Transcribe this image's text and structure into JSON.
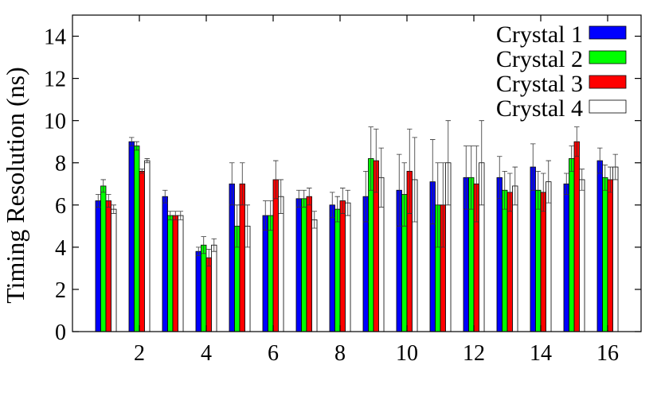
{
  "chart_data": {
    "type": "bar",
    "title": "",
    "xlabel": "",
    "ylabel": "Timing Resolution (ns)",
    "xlim": [
      0,
      17
    ],
    "ylim": [
      0,
      15
    ],
    "x_ticks": [
      2,
      4,
      6,
      8,
      10,
      12,
      14,
      16
    ],
    "y_ticks": [
      0,
      2,
      4,
      6,
      8,
      10,
      12,
      14
    ],
    "categories": [
      1,
      2,
      3,
      4,
      5,
      6,
      7,
      8,
      9,
      10,
      11,
      12,
      13,
      14,
      15,
      16
    ],
    "grid": false,
    "legend_position": "top-right",
    "series": [
      {
        "name": "Crystal 1",
        "color": "#0000ff",
        "values": [
          6.2,
          9.0,
          6.4,
          3.8,
          7.0,
          5.5,
          6.3,
          6.0,
          6.4,
          6.7,
          7.1,
          7.3,
          7.3,
          7.8,
          7.0,
          8.1
        ],
        "errors": [
          0.3,
          0.2,
          0.3,
          0.2,
          1.0,
          0.7,
          0.4,
          0.6,
          1.2,
          1.7,
          2.0,
          1.5,
          1.0,
          1.1,
          0.5,
          0.6
        ]
      },
      {
        "name": "Crystal 2",
        "color": "#00ff00",
        "values": [
          6.9,
          8.8,
          5.5,
          4.1,
          5.0,
          5.5,
          6.3,
          5.8,
          8.2,
          6.5,
          6.0,
          7.3,
          6.7,
          6.7,
          8.2,
          7.3
        ],
        "errors": [
          0.3,
          0.2,
          0.2,
          0.4,
          1.0,
          0.7,
          0.4,
          0.6,
          1.5,
          1.5,
          2.0,
          1.5,
          0.9,
          0.9,
          0.6,
          0.6
        ]
      },
      {
        "name": "Crystal 3",
        "color": "#ff0000",
        "values": [
          6.2,
          7.6,
          5.5,
          3.5,
          7.0,
          7.2,
          6.4,
          6.2,
          8.1,
          7.6,
          6.0,
          7.0,
          6.6,
          6.6,
          9.0,
          7.2
        ],
        "errors": [
          0.3,
          0.1,
          0.2,
          0.4,
          1.0,
          0.9,
          0.4,
          0.6,
          1.5,
          2.0,
          2.0,
          1.8,
          0.9,
          0.9,
          0.7,
          0.6
        ]
      },
      {
        "name": "Crystal 4",
        "color": "#ffffff",
        "values": [
          5.8,
          8.1,
          5.5,
          4.1,
          5.0,
          6.4,
          5.3,
          6.1,
          7.3,
          7.2,
          8.0,
          8.0,
          6.9,
          7.1,
          7.2,
          7.8
        ],
        "errors": [
          0.2,
          0.1,
          0.2,
          0.3,
          1.0,
          0.8,
          0.4,
          0.6,
          1.4,
          2.0,
          2.0,
          2.0,
          0.9,
          1.0,
          0.5,
          0.6
        ]
      }
    ]
  }
}
